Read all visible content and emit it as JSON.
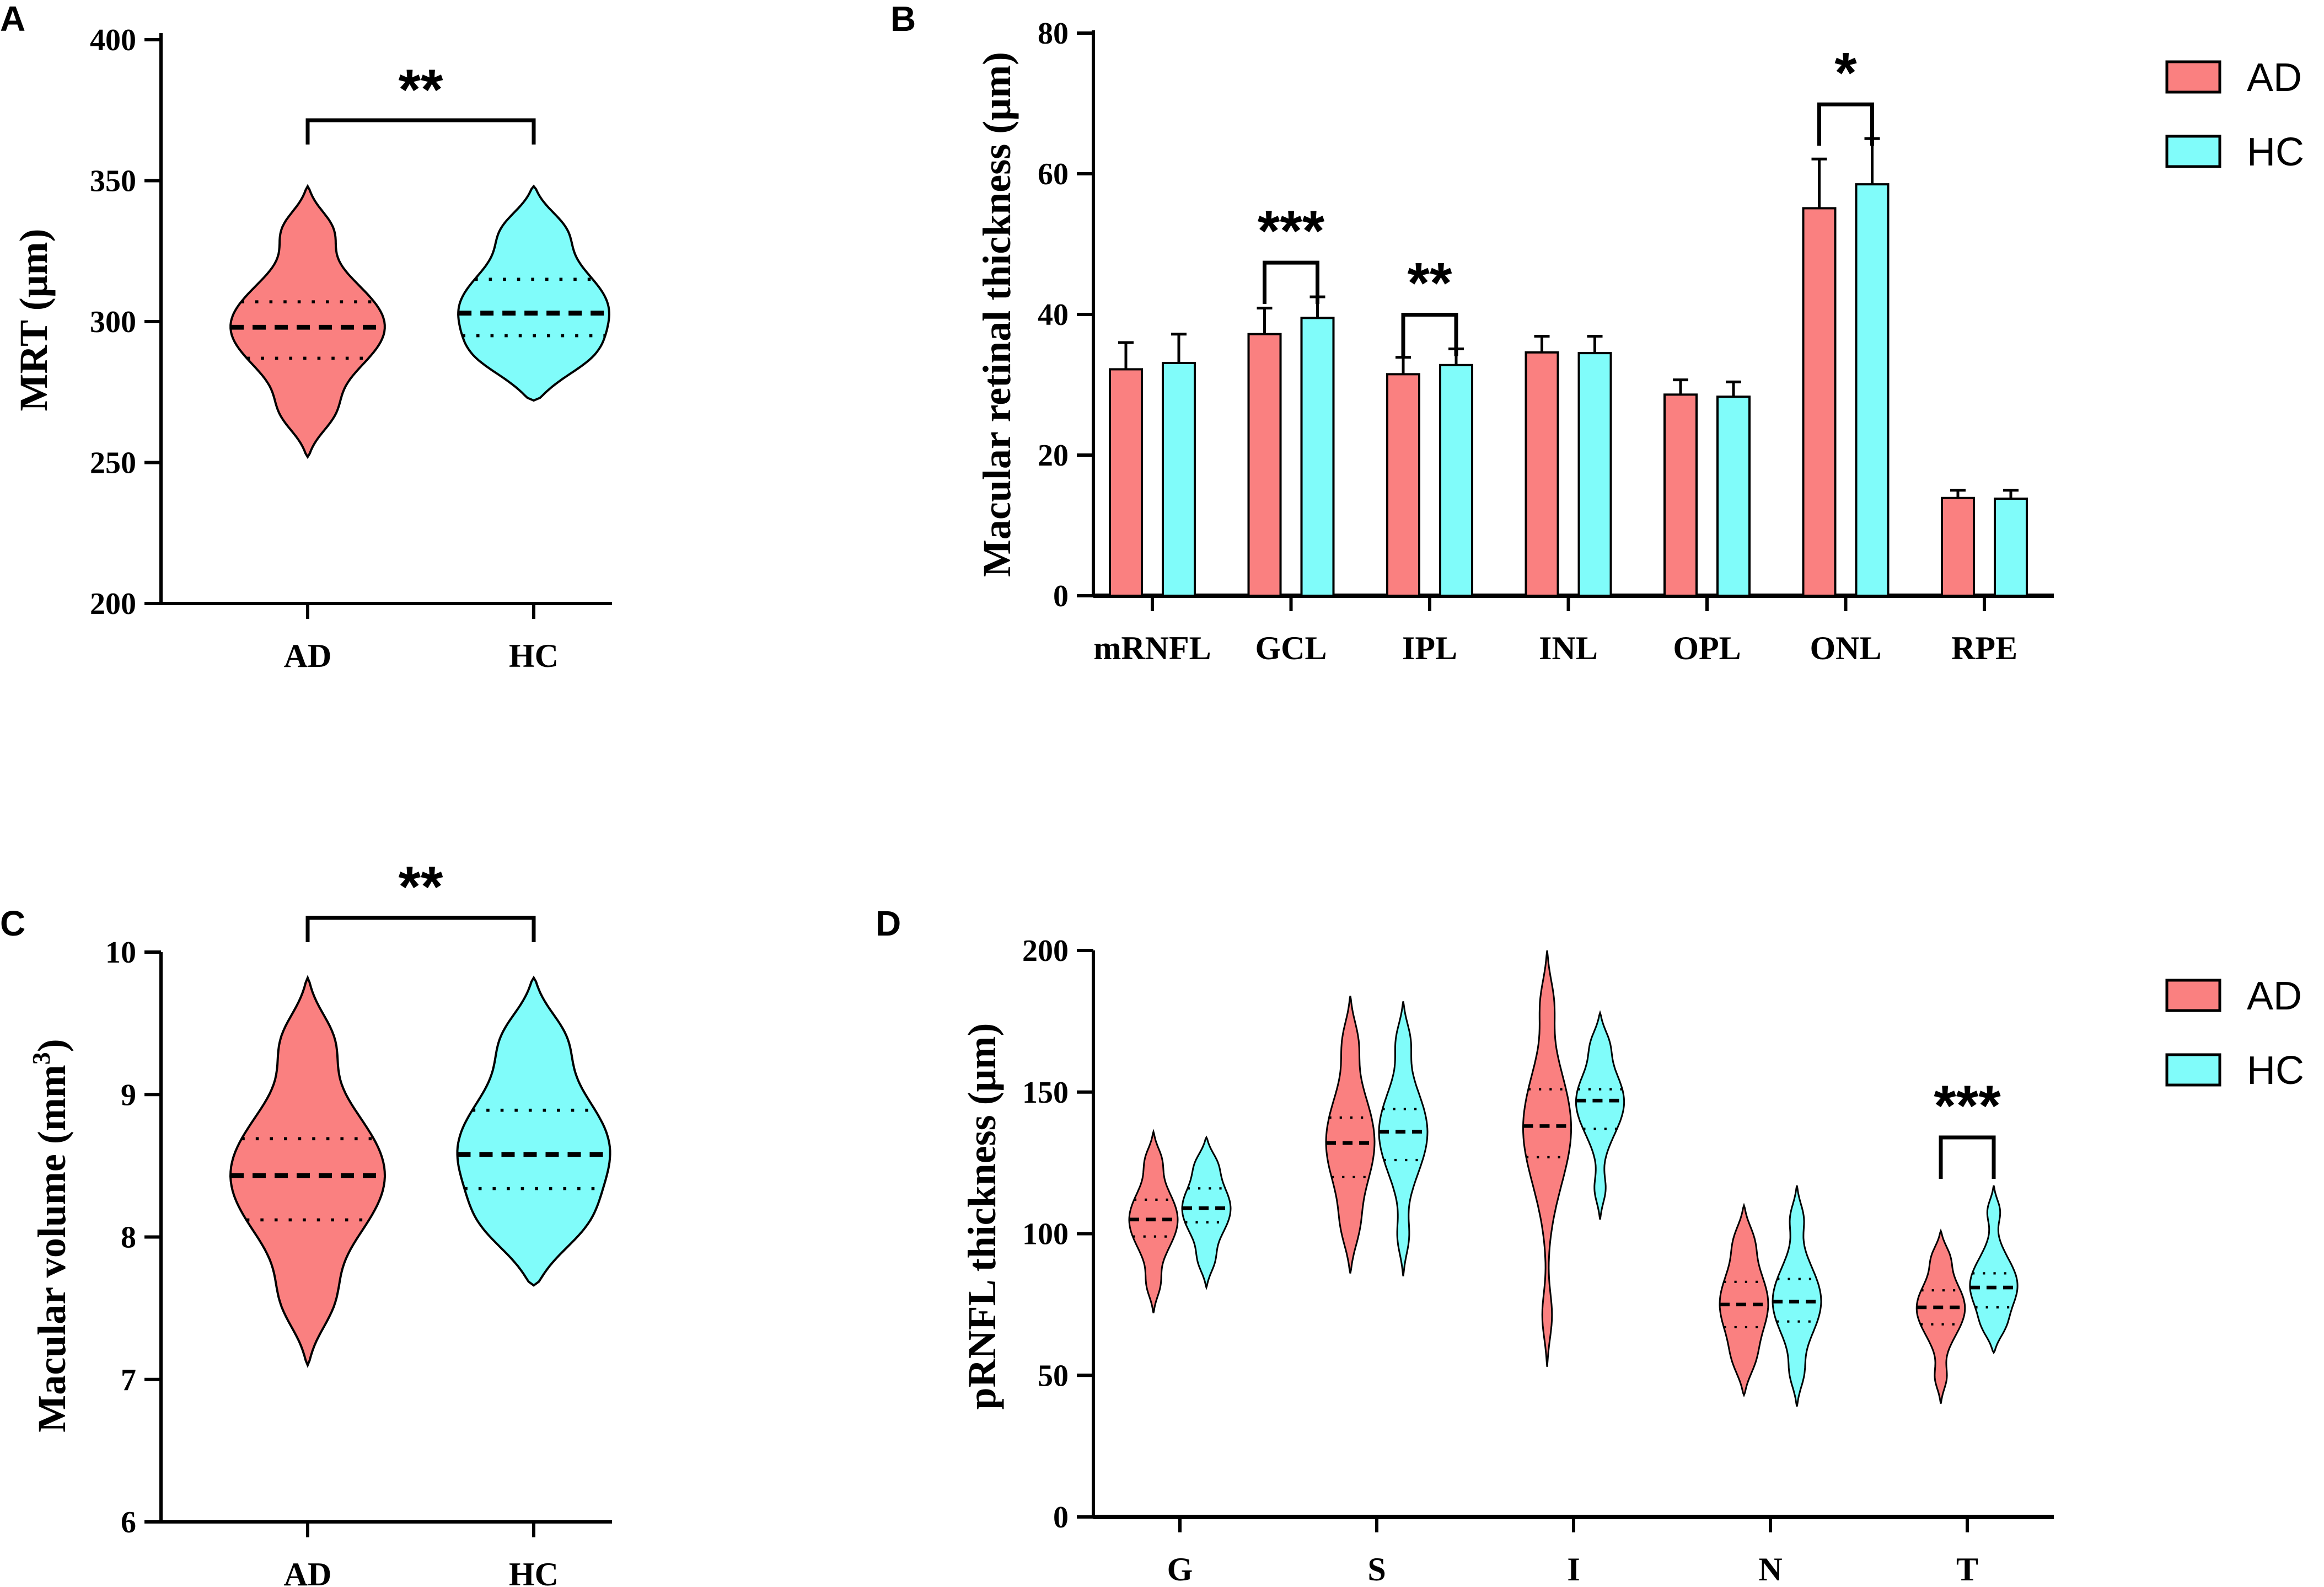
{
  "colors": {
    "AD": "#fa8080",
    "HC": "#80fcfa"
  },
  "legend": [
    "AD",
    "HC"
  ],
  "chart_data": [
    {
      "panel": "A",
      "type": "violin",
      "ylabel": "MRT (μm)",
      "ylim": [
        200,
        400
      ],
      "yticks": [
        200,
        250,
        300,
        350,
        400
      ],
      "categories": [
        "AD",
        "HC"
      ],
      "groups": [
        {
          "name": "AD",
          "median": 298,
          "q1": 287,
          "q3": 307,
          "min": 252,
          "max": 348
        },
        {
          "name": "HC",
          "median": 303,
          "q1": 295,
          "q3": 315,
          "min": 272,
          "max": 348
        }
      ],
      "significance": [
        {
          "between": [
            "AD",
            "HC"
          ],
          "label": "**"
        }
      ]
    },
    {
      "panel": "B",
      "type": "bar",
      "ylabel": "Macular retinal thickness (μm)",
      "ylim": [
        0,
        80
      ],
      "yticks": [
        0,
        20,
        40,
        60,
        80
      ],
      "categories": [
        "mRNFL",
        "GCL",
        "IPL",
        "INL",
        "OPL",
        "ONL",
        "RPE"
      ],
      "series": [
        {
          "name": "AD",
          "values": [
            32.2,
            37.2,
            31.5,
            34.6,
            28.6,
            55.1,
            13.9
          ],
          "errors": [
            3.8,
            3.7,
            2.4,
            2.3,
            2.1,
            7.0,
            1.1
          ]
        },
        {
          "name": "HC",
          "values": [
            33.1,
            39.5,
            32.8,
            34.5,
            28.3,
            58.5,
            13.8
          ],
          "errors": [
            4.1,
            3.0,
            2.3,
            2.4,
            2.1,
            6.5,
            1.2
          ]
        }
      ],
      "significance": [
        {
          "category": "GCL",
          "label": "***"
        },
        {
          "category": "IPL",
          "label": "**"
        },
        {
          "category": "ONL",
          "label": "*"
        }
      ]
    },
    {
      "panel": "C",
      "type": "violin",
      "ylabel": "Macular volume (mm",
      "ylabel_sup": "3",
      "ylabel_end": ")",
      "ylim": [
        6,
        10
      ],
      "yticks": [
        6,
        7,
        8,
        9,
        10
      ],
      "categories": [
        "AD",
        "HC"
      ],
      "groups": [
        {
          "name": "AD",
          "median": 8.43,
          "q1": 8.12,
          "q3": 8.69,
          "min": 7.1,
          "max": 9.82
        },
        {
          "name": "HC",
          "median": 8.58,
          "q1": 8.34,
          "q3": 8.89,
          "min": 7.66,
          "max": 9.82
        }
      ],
      "significance": [
        {
          "between": [
            "AD",
            "HC"
          ],
          "label": "**"
        }
      ]
    },
    {
      "panel": "D",
      "type": "violin",
      "ylabel": "pRNFL thickness (μm)",
      "ylim": [
        0,
        200
      ],
      "yticks": [
        0,
        50,
        100,
        150,
        200
      ],
      "categories": [
        "G",
        "S",
        "I",
        "N",
        "T"
      ],
      "series": [
        {
          "name": "AD",
          "groups": [
            {
              "median": 105,
              "q1": 99,
              "q3": 112,
              "min": 72,
              "max": 136
            },
            {
              "median": 132,
              "q1": 120,
              "q3": 141,
              "min": 86,
              "max": 184
            },
            {
              "median": 138,
              "q1": 127,
              "q3": 151,
              "min": 53,
              "max": 200
            },
            {
              "median": 75,
              "q1": 67,
              "q3": 83,
              "min": 43,
              "max": 110
            },
            {
              "median": 74,
              "q1": 68,
              "q3": 80,
              "min": 40,
              "max": 101
            }
          ]
        },
        {
          "name": "HC",
          "groups": [
            {
              "median": 109,
              "q1": 104,
              "q3": 116,
              "min": 81,
              "max": 134
            },
            {
              "median": 136,
              "q1": 126,
              "q3": 144,
              "min": 85,
              "max": 182
            },
            {
              "median": 147,
              "q1": 137,
              "q3": 151,
              "min": 105,
              "max": 178
            },
            {
              "median": 76,
              "q1": 69,
              "q3": 84,
              "min": 39,
              "max": 117
            },
            {
              "median": 81,
              "q1": 74,
              "q3": 86,
              "min": 58,
              "max": 117
            }
          ]
        }
      ],
      "significance": [
        {
          "category": "T",
          "label": "***"
        }
      ]
    }
  ]
}
